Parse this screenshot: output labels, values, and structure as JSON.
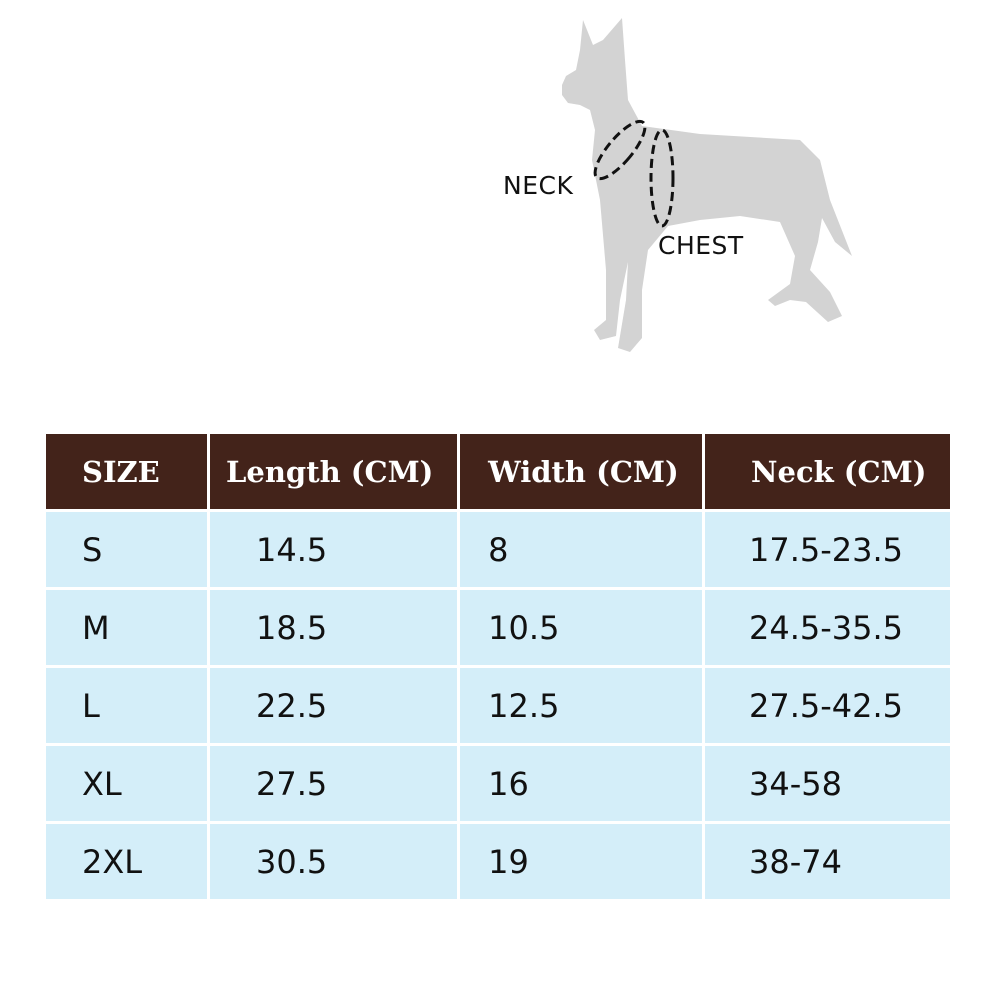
{
  "diagram": {
    "neck_label": "NECK",
    "chest_label": "CHEST",
    "silhouette_color": "#d3d3d3"
  },
  "table": {
    "header_color": "#43231a",
    "row_color": "#d4eef9",
    "headers": [
      "SIZE",
      "Length (CM)",
      "Width (CM)",
      "Neck (CM)"
    ],
    "rows": [
      [
        "S",
        "14.5",
        "8",
        "17.5-23.5"
      ],
      [
        "M",
        "18.5",
        "10.5",
        "24.5-35.5"
      ],
      [
        "L",
        "22.5",
        "12.5",
        "27.5-42.5"
      ],
      [
        "XL",
        "27.5",
        "16",
        "34-58"
      ],
      [
        "2XL",
        "30.5",
        "19",
        "38-74"
      ]
    ]
  }
}
